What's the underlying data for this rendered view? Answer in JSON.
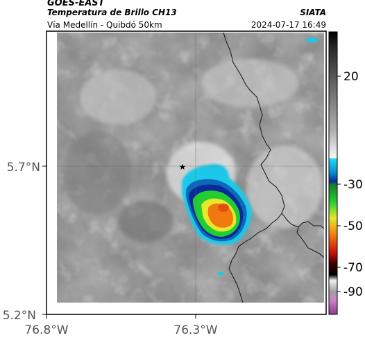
{
  "header": {
    "satellite": "GOES-EAST",
    "product": "Temperatura de Brillo CH13",
    "region": "Vía Medellín - Quibdó 50km",
    "source": "SIATA",
    "timestamp": "2024-07-17 16:49"
  },
  "map": {
    "lon_ticks": [
      "76.8°W",
      "76.3°W"
    ],
    "lat_ticks": [
      "5.7°N",
      "5.2°N"
    ],
    "marker": "star-icon"
  },
  "colorbar": {
    "tick_labels": [
      "20",
      "-30",
      "-50",
      "-70",
      "-90"
    ],
    "colors": {
      "cyan": "#1ec8e8",
      "blue": "#0a2a9a",
      "green": "#22cc33",
      "yellow": "#e8e82a",
      "orange": "#f07a10",
      "red": "#cc1010",
      "black": "#000000",
      "magenta": "#b040a8"
    }
  }
}
